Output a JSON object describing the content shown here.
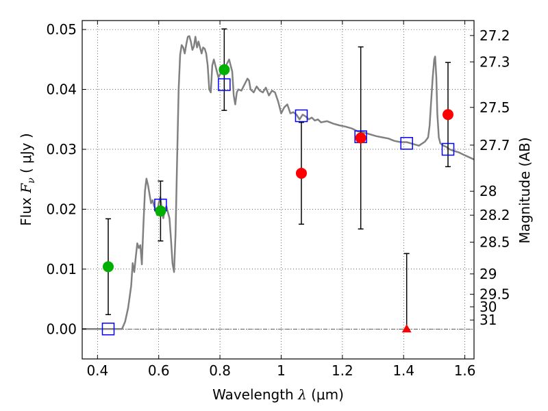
{
  "chart_data": {
    "type": "scatter",
    "xlabel_text": "Wavelength",
    "xlabel_symbol": "λ",
    "xlabel_unit": "(μm)",
    "ylabel_text": "Flux",
    "ylabel_symbol": "F",
    "ylabel_subscript": "ν",
    "ylabel_unit": "( μJy )",
    "y2label": "Magnitude (AB)",
    "xlim": [
      0.35,
      1.63
    ],
    "ylim": [
      -0.005,
      0.0515
    ],
    "grid": true,
    "x_ticks": [
      {
        "value": 0.4,
        "label": "0.4"
      },
      {
        "value": 0.6,
        "label": "0.6"
      },
      {
        "value": 0.8,
        "label": "0.8"
      },
      {
        "value": 1.0,
        "label": "1"
      },
      {
        "value": 1.2,
        "label": "1.2"
      },
      {
        "value": 1.4,
        "label": "1.4"
      },
      {
        "value": 1.6,
        "label": "1.6"
      }
    ],
    "y_ticks": [
      {
        "value": 0.0,
        "label": "0.00"
      },
      {
        "value": 0.01,
        "label": "0.01"
      },
      {
        "value": 0.02,
        "label": "0.02"
      },
      {
        "value": 0.03,
        "label": "0.03"
      },
      {
        "value": 0.04,
        "label": "0.04"
      },
      {
        "value": 0.05,
        "label": "0.05"
      }
    ],
    "mag_ticks": [
      {
        "flux": 0.049,
        "label": "27.2"
      },
      {
        "flux": 0.0446,
        "label": "27.3"
      },
      {
        "flux": 0.037,
        "label": "27.5"
      },
      {
        "flux": 0.0307,
        "label": "27.7"
      },
      {
        "flux": 0.023,
        "label": "28"
      },
      {
        "flux": 0.019,
        "label": "28.2"
      },
      {
        "flux": 0.0145,
        "label": "28.5"
      },
      {
        "flux": 0.0092,
        "label": "29"
      },
      {
        "flux": 0.0058,
        "label": "29.5"
      },
      {
        "flux": 0.0037,
        "label": "30"
      },
      {
        "flux": 0.0015,
        "label": "31"
      }
    ],
    "series": [
      {
        "kind": "model_sed",
        "color": "#808080",
        "points": [
          [
            0.35,
            0.0
          ],
          [
            0.48,
            0.0
          ],
          [
            0.49,
            0.0012
          ],
          [
            0.5,
            0.0035
          ],
          [
            0.51,
            0.0072
          ],
          [
            0.515,
            0.011
          ],
          [
            0.52,
            0.0095
          ],
          [
            0.525,
            0.012
          ],
          [
            0.53,
            0.0143
          ],
          [
            0.535,
            0.0135
          ],
          [
            0.54,
            0.014
          ],
          [
            0.545,
            0.0108
          ],
          [
            0.55,
            0.0175
          ],
          [
            0.555,
            0.023
          ],
          [
            0.56,
            0.0251
          ],
          [
            0.565,
            0.024
          ],
          [
            0.57,
            0.0225
          ],
          [
            0.575,
            0.021
          ],
          [
            0.58,
            0.0215
          ],
          [
            0.585,
            0.0205
          ],
          [
            0.59,
            0.02
          ],
          [
            0.595,
            0.019
          ],
          [
            0.6,
            0.021
          ],
          [
            0.605,
            0.022
          ],
          [
            0.61,
            0.02
          ],
          [
            0.615,
            0.0185
          ],
          [
            0.62,
            0.02
          ],
          [
            0.625,
            0.0205
          ],
          [
            0.63,
            0.0195
          ],
          [
            0.635,
            0.0185
          ],
          [
            0.64,
            0.015
          ],
          [
            0.645,
            0.011
          ],
          [
            0.65,
            0.0095
          ],
          [
            0.655,
            0.016
          ],
          [
            0.66,
            0.028
          ],
          [
            0.665,
            0.04
          ],
          [
            0.67,
            0.0458
          ],
          [
            0.675,
            0.0474
          ],
          [
            0.68,
            0.047
          ],
          [
            0.685,
            0.046
          ],
          [
            0.69,
            0.0475
          ],
          [
            0.695,
            0.0488
          ],
          [
            0.7,
            0.0489
          ],
          [
            0.705,
            0.048
          ],
          [
            0.71,
            0.0466
          ],
          [
            0.715,
            0.0472
          ],
          [
            0.72,
            0.0488
          ],
          [
            0.725,
            0.047
          ],
          [
            0.73,
            0.048
          ],
          [
            0.735,
            0.047
          ],
          [
            0.74,
            0.046
          ],
          [
            0.745,
            0.047
          ],
          [
            0.75,
            0.0468
          ],
          [
            0.755,
            0.046
          ],
          [
            0.76,
            0.044
          ],
          [
            0.765,
            0.04
          ],
          [
            0.77,
            0.0395
          ],
          [
            0.775,
            0.044
          ],
          [
            0.78,
            0.045
          ],
          [
            0.785,
            0.044
          ],
          [
            0.79,
            0.043
          ],
          [
            0.795,
            0.042
          ],
          [
            0.8,
            0.0425
          ],
          [
            0.81,
            0.0432
          ],
          [
            0.815,
            0.0436
          ],
          [
            0.82,
            0.044
          ],
          [
            0.83,
            0.045
          ],
          [
            0.835,
            0.044
          ],
          [
            0.84,
            0.043
          ],
          [
            0.845,
            0.039
          ],
          [
            0.85,
            0.0375
          ],
          [
            0.855,
            0.0395
          ],
          [
            0.86,
            0.04
          ],
          [
            0.87,
            0.0398
          ],
          [
            0.88,
            0.0408
          ],
          [
            0.89,
            0.0418
          ],
          [
            0.895,
            0.0415
          ],
          [
            0.9,
            0.04
          ],
          [
            0.91,
            0.0395
          ],
          [
            0.92,
            0.0405
          ],
          [
            0.93,
            0.0398
          ],
          [
            0.94,
            0.0395
          ],
          [
            0.95,
            0.0403
          ],
          [
            0.96,
            0.039
          ],
          [
            0.97,
            0.0398
          ],
          [
            0.98,
            0.0395
          ],
          [
            0.99,
            0.038
          ],
          [
            1.0,
            0.036
          ],
          [
            1.01,
            0.037
          ],
          [
            1.02,
            0.0375
          ],
          [
            1.03,
            0.036
          ],
          [
            1.04,
            0.0362
          ],
          [
            1.05,
            0.0358
          ],
          [
            1.06,
            0.035
          ],
          [
            1.07,
            0.0358
          ],
          [
            1.08,
            0.0355
          ],
          [
            1.09,
            0.035
          ],
          [
            1.1,
            0.0353
          ],
          [
            1.11,
            0.0348
          ],
          [
            1.12,
            0.035
          ],
          [
            1.13,
            0.0345
          ],
          [
            1.15,
            0.0347
          ],
          [
            1.17,
            0.0343
          ],
          [
            1.19,
            0.034
          ],
          [
            1.21,
            0.0338
          ],
          [
            1.23,
            0.0335
          ],
          [
            1.25,
            0.033
          ],
          [
            1.27,
            0.0328
          ],
          [
            1.29,
            0.0325
          ],
          [
            1.31,
            0.0322
          ],
          [
            1.33,
            0.032
          ],
          [
            1.35,
            0.0318
          ],
          [
            1.37,
            0.0314
          ],
          [
            1.39,
            0.0312
          ],
          [
            1.41,
            0.0312
          ],
          [
            1.43,
            0.0309
          ],
          [
            1.45,
            0.0306
          ],
          [
            1.47,
            0.0313
          ],
          [
            1.48,
            0.032
          ],
          [
            1.485,
            0.034
          ],
          [
            1.49,
            0.038
          ],
          [
            1.495,
            0.042
          ],
          [
            1.5,
            0.045
          ],
          [
            1.503,
            0.0455
          ],
          [
            1.507,
            0.042
          ],
          [
            1.51,
            0.036
          ],
          [
            1.515,
            0.032
          ],
          [
            1.52,
            0.031
          ],
          [
            1.53,
            0.0306
          ],
          [
            1.54,
            0.0304
          ],
          [
            1.55,
            0.03
          ],
          [
            1.56,
            0.0298
          ],
          [
            1.58,
            0.0295
          ],
          [
            1.6,
            0.029
          ],
          [
            1.63,
            0.0283
          ]
        ]
      },
      {
        "kind": "model_photometry",
        "color": "#0000ff",
        "points": [
          [
            0.435,
            0.0
          ],
          [
            0.606,
            0.0207
          ],
          [
            0.814,
            0.0408
          ],
          [
            1.066,
            0.0356
          ],
          [
            1.26,
            0.0321
          ],
          [
            1.41,
            0.031
          ],
          [
            1.545,
            0.03
          ]
        ]
      },
      {
        "kind": "observed_detection_green",
        "color": "#00b000",
        "points": [
          [
            0.435,
            0.0104,
            0.008
          ],
          [
            0.606,
            0.0197,
            0.005
          ],
          [
            0.814,
            0.0433,
            0.0068
          ]
        ]
      },
      {
        "kind": "observed_detection_red",
        "color": "#ff0000",
        "points": [
          [
            1.066,
            0.026,
            0.0085
          ],
          [
            1.26,
            0.0319,
            0.0152
          ],
          [
            1.545,
            0.0358,
            0.0087
          ]
        ]
      },
      {
        "kind": "observed_upper_limit",
        "color": "#ff0000",
        "points": [
          [
            1.41,
            0.0,
            0.0126
          ]
        ]
      }
    ]
  }
}
